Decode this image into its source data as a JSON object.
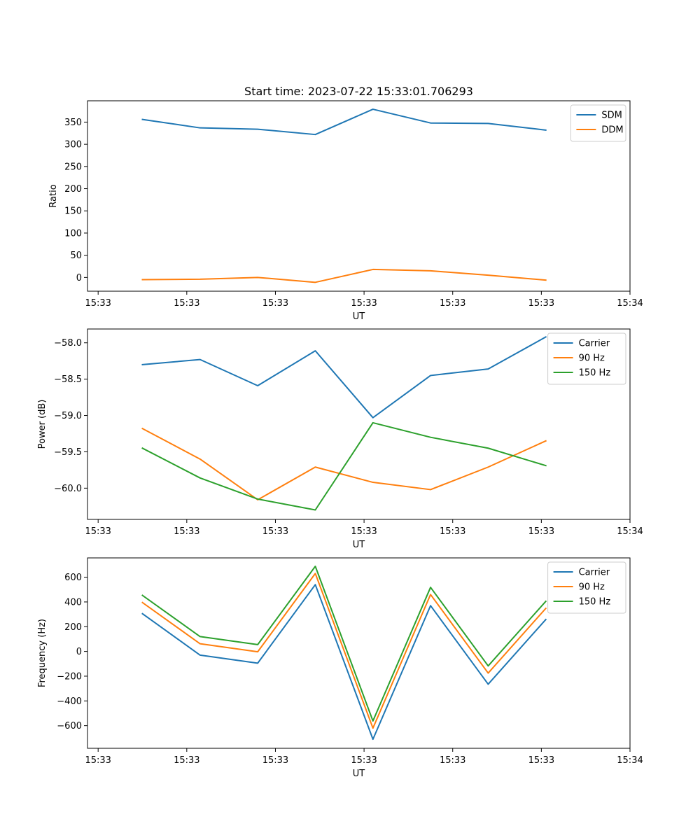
{
  "figure_title": "Start time: 2023-07-22 15:33:01.706293",
  "colors": {
    "blue": "#1f77b4",
    "orange": "#ff7f0e",
    "green": "#2ca02c"
  },
  "chart_data": [
    {
      "type": "line",
      "title": "Start time: 2023-07-22 15:33:01.706293",
      "xlabel": "UT",
      "ylabel": "Ratio",
      "x_ticks": [
        "15:33",
        "15:33",
        "15:33",
        "15:33",
        "15:33",
        "15:33",
        "15:34"
      ],
      "x_tick_values": [
        0,
        1,
        2,
        3,
        4,
        5,
        6
      ],
      "xlim": [
        -0.12,
        6.0
      ],
      "x": [
        0.5,
        1.15,
        1.8,
        2.45,
        3.1,
        3.75,
        4.4,
        5.05
      ],
      "ylim": [
        -31,
        398
      ],
      "y_ticks": [
        0,
        50,
        100,
        150,
        200,
        250,
        300,
        350
      ],
      "y_tick_labels": [
        "0",
        "50",
        "100",
        "150",
        "200",
        "250",
        "300",
        "350"
      ],
      "legend_position": "top-right",
      "series": [
        {
          "name": "SDM",
          "color": "#1f77b4",
          "values": [
            356,
            337,
            334,
            322,
            379,
            348,
            347,
            332
          ]
        },
        {
          "name": "DDM",
          "color": "#ff7f0e",
          "values": [
            -5,
            -4,
            0,
            -11,
            18,
            15,
            5,
            -6
          ]
        }
      ]
    },
    {
      "type": "line",
      "title": "",
      "xlabel": "UT",
      "ylabel": "Power (dB)",
      "x_ticks": [
        "15:33",
        "15:33",
        "15:33",
        "15:33",
        "15:33",
        "15:33",
        "15:34"
      ],
      "x_tick_values": [
        0,
        1,
        2,
        3,
        4,
        5,
        6
      ],
      "xlim": [
        -0.12,
        6.0
      ],
      "x": [
        0.5,
        1.15,
        1.8,
        2.45,
        3.1,
        3.75,
        4.4,
        5.05
      ],
      "ylim": [
        -60.43,
        -57.81
      ],
      "y_ticks": [
        -60.0,
        -59.5,
        -59.0,
        -58.5,
        -58.0
      ],
      "y_tick_labels": [
        "−60.0",
        "−59.5",
        "−59.0",
        "−58.5",
        "−58.0"
      ],
      "legend_position": "top-right",
      "series": [
        {
          "name": "Carrier",
          "color": "#1f77b4",
          "values": [
            -58.3,
            -58.23,
            -58.59,
            -58.11,
            -59.03,
            -58.45,
            -58.36,
            -57.92
          ]
        },
        {
          "name": "90 Hz",
          "color": "#ff7f0e",
          "values": [
            -59.18,
            -59.6,
            -60.16,
            -59.71,
            -59.92,
            -60.02,
            -59.71,
            -59.35
          ]
        },
        {
          "name": "150 Hz",
          "color": "#2ca02c",
          "values": [
            -59.45,
            -59.86,
            -60.15,
            -60.3,
            -59.1,
            -59.3,
            -59.45,
            -59.69
          ]
        }
      ]
    },
    {
      "type": "line",
      "title": "",
      "xlabel": "UT",
      "ylabel": "Frequency (Hz)",
      "x_ticks": [
        "15:33",
        "15:33",
        "15:33",
        "15:33",
        "15:33",
        "15:33",
        "15:34"
      ],
      "x_tick_values": [
        0,
        1,
        2,
        3,
        4,
        5,
        6
      ],
      "xlim": [
        -0.12,
        6.0
      ],
      "x": [
        0.5,
        1.15,
        1.8,
        2.45,
        3.1,
        3.75,
        4.4,
        5.05
      ],
      "ylim": [
        -783,
        756
      ],
      "y_ticks": [
        -600,
        -400,
        -200,
        0,
        200,
        400,
        600
      ],
      "y_tick_labels": [
        "−600",
        "−400",
        "−200",
        "0",
        "200",
        "400",
        "600"
      ],
      "legend_position": "top-right",
      "series": [
        {
          "name": "Carrier",
          "color": "#1f77b4",
          "values": [
            305,
            -30,
            -95,
            540,
            -710,
            370,
            -265,
            258
          ]
        },
        {
          "name": "90 Hz",
          "color": "#ff7f0e",
          "values": [
            395,
            62,
            -3,
            630,
            -620,
            460,
            -175,
            348
          ]
        },
        {
          "name": "150 Hz",
          "color": "#2ca02c",
          "values": [
            453,
            120,
            55,
            688,
            -562,
            518,
            -117,
            405
          ]
        }
      ]
    }
  ]
}
